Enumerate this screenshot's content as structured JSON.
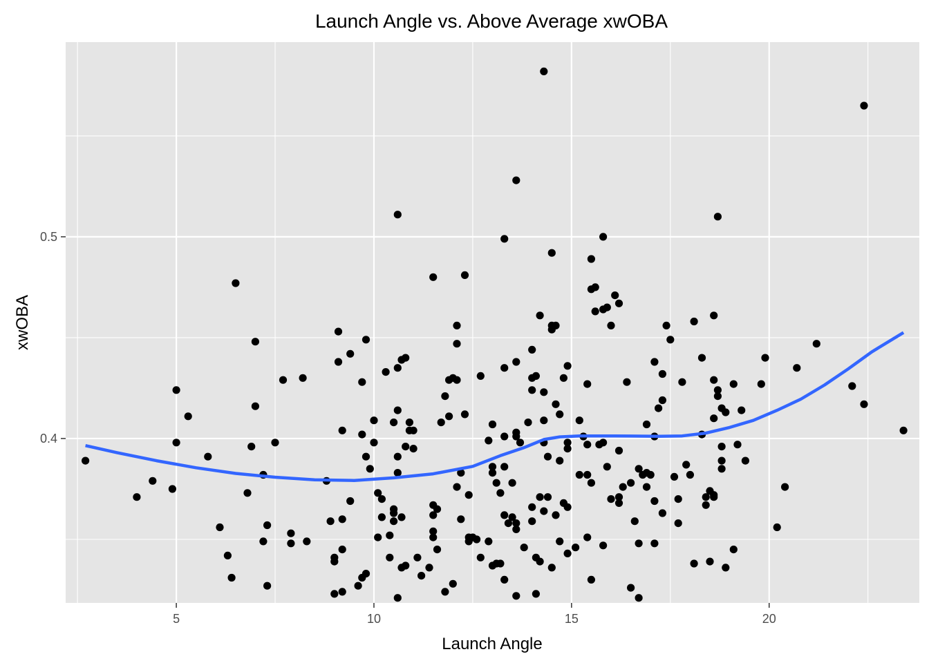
{
  "chart_data": {
    "type": "scatter",
    "title": "Launch Angle vs. Above Average xwOBA",
    "xlabel": "Launch Angle",
    "ylabel": "xwOBA",
    "xlim": [
      2.2,
      23.8
    ],
    "ylim": [
      0.3185,
      0.5965
    ],
    "x_ticks": [
      5,
      10,
      15,
      20
    ],
    "x_tick_labels": [
      "5",
      "10",
      "15",
      "20"
    ],
    "x_minor_ticks": [
      2.5,
      7.5,
      12.5,
      17.5,
      22.5
    ],
    "y_ticks": [
      0.4,
      0.5
    ],
    "y_tick_labels": [
      "0.4",
      "0.5"
    ],
    "y_minor_ticks": [
      0.35,
      0.45,
      0.55
    ],
    "grid": true,
    "colors": {
      "panel_background": "#e5e5e5",
      "grid": "#ffffff",
      "points": "#000000",
      "smooth_line": "#3366ff"
    },
    "points": [
      [
        2.7,
        0.389
      ],
      [
        4.0,
        0.371
      ],
      [
        4.4,
        0.379
      ],
      [
        4.9,
        0.375
      ],
      [
        5.0,
        0.424
      ],
      [
        5.0,
        0.398
      ],
      [
        5.3,
        0.411
      ],
      [
        5.8,
        0.391
      ],
      [
        6.1,
        0.356
      ],
      [
        6.3,
        0.342
      ],
      [
        6.4,
        0.331
      ],
      [
        6.5,
        0.477
      ],
      [
        6.8,
        0.373
      ],
      [
        6.9,
        0.396
      ],
      [
        7.0,
        0.448
      ],
      [
        7.0,
        0.416
      ],
      [
        7.2,
        0.382
      ],
      [
        7.2,
        0.349
      ],
      [
        7.3,
        0.357
      ],
      [
        7.3,
        0.327
      ],
      [
        7.5,
        0.398
      ],
      [
        7.7,
        0.429
      ],
      [
        7.9,
        0.353
      ],
      [
        7.9,
        0.348
      ],
      [
        8.2,
        0.43
      ],
      [
        8.3,
        0.349
      ],
      [
        8.8,
        0.379
      ],
      [
        8.9,
        0.359
      ],
      [
        9.0,
        0.341
      ],
      [
        9.0,
        0.339
      ],
      [
        9.0,
        0.323
      ],
      [
        9.1,
        0.453
      ],
      [
        9.1,
        0.438
      ],
      [
        9.2,
        0.404
      ],
      [
        9.2,
        0.36
      ],
      [
        9.2,
        0.345
      ],
      [
        9.2,
        0.324
      ],
      [
        9.4,
        0.442
      ],
      [
        9.4,
        0.369
      ],
      [
        9.6,
        0.327
      ],
      [
        9.7,
        0.428
      ],
      [
        9.7,
        0.402
      ],
      [
        9.7,
        0.331
      ],
      [
        9.8,
        0.449
      ],
      [
        9.8,
        0.391
      ],
      [
        9.8,
        0.333
      ],
      [
        9.9,
        0.385
      ],
      [
        10.0,
        0.409
      ],
      [
        10.0,
        0.398
      ],
      [
        10.1,
        0.373
      ],
      [
        10.1,
        0.351
      ],
      [
        10.2,
        0.37
      ],
      [
        10.2,
        0.361
      ],
      [
        10.3,
        0.433
      ],
      [
        10.4,
        0.352
      ],
      [
        10.4,
        0.341
      ],
      [
        10.5,
        0.408
      ],
      [
        10.5,
        0.365
      ],
      [
        10.5,
        0.363
      ],
      [
        10.5,
        0.359
      ],
      [
        10.6,
        0.511
      ],
      [
        10.6,
        0.435
      ],
      [
        10.6,
        0.414
      ],
      [
        10.6,
        0.391
      ],
      [
        10.6,
        0.383
      ],
      [
        10.6,
        0.321
      ],
      [
        10.7,
        0.439
      ],
      [
        10.7,
        0.361
      ],
      [
        10.7,
        0.336
      ],
      [
        10.8,
        0.44
      ],
      [
        10.8,
        0.396
      ],
      [
        10.8,
        0.337
      ],
      [
        10.9,
        0.408
      ],
      [
        10.9,
        0.404
      ],
      [
        11.0,
        0.404
      ],
      [
        11.0,
        0.395
      ],
      [
        11.1,
        0.341
      ],
      [
        11.2,
        0.332
      ],
      [
        11.4,
        0.336
      ],
      [
        11.5,
        0.351
      ],
      [
        11.5,
        0.48
      ],
      [
        11.5,
        0.354
      ],
      [
        11.5,
        0.367
      ],
      [
        11.5,
        0.362
      ],
      [
        11.6,
        0.365
      ],
      [
        11.6,
        0.345
      ],
      [
        11.7,
        0.408
      ],
      [
        11.8,
        0.421
      ],
      [
        11.8,
        0.324
      ],
      [
        11.9,
        0.429
      ],
      [
        11.9,
        0.411
      ],
      [
        12.0,
        0.43
      ],
      [
        12.0,
        0.328
      ],
      [
        12.1,
        0.456
      ],
      [
        12.1,
        0.447
      ],
      [
        12.1,
        0.429
      ],
      [
        12.1,
        0.376
      ],
      [
        12.2,
        0.383
      ],
      [
        12.2,
        0.36
      ],
      [
        12.3,
        0.481
      ],
      [
        12.3,
        0.412
      ],
      [
        12.4,
        0.372
      ],
      [
        12.4,
        0.351
      ],
      [
        12.4,
        0.349
      ],
      [
        12.5,
        0.351
      ],
      [
        12.6,
        0.35
      ],
      [
        12.7,
        0.431
      ],
      [
        12.7,
        0.341
      ],
      [
        12.9,
        0.349
      ],
      [
        12.9,
        0.399
      ],
      [
        13.0,
        0.383
      ],
      [
        13.0,
        0.407
      ],
      [
        13.0,
        0.386
      ],
      [
        13.0,
        0.337
      ],
      [
        13.1,
        0.378
      ],
      [
        13.1,
        0.338
      ],
      [
        13.2,
        0.373
      ],
      [
        13.2,
        0.338
      ],
      [
        13.3,
        0.499
      ],
      [
        13.3,
        0.435
      ],
      [
        13.3,
        0.401
      ],
      [
        13.3,
        0.386
      ],
      [
        13.3,
        0.362
      ],
      [
        13.3,
        0.33
      ],
      [
        13.4,
        0.358
      ],
      [
        13.5,
        0.378
      ],
      [
        13.5,
        0.361
      ],
      [
        13.6,
        0.528
      ],
      [
        13.6,
        0.438
      ],
      [
        13.6,
        0.403
      ],
      [
        13.6,
        0.401
      ],
      [
        13.6,
        0.358
      ],
      [
        13.6,
        0.355
      ],
      [
        13.6,
        0.322
      ],
      [
        13.7,
        0.398
      ],
      [
        13.8,
        0.346
      ],
      [
        13.9,
        0.408
      ],
      [
        14.0,
        0.444
      ],
      [
        14.0,
        0.43
      ],
      [
        14.0,
        0.424
      ],
      [
        14.0,
        0.366
      ],
      [
        14.0,
        0.359
      ],
      [
        14.1,
        0.431
      ],
      [
        14.1,
        0.341
      ],
      [
        14.1,
        0.323
      ],
      [
        14.2,
        0.461
      ],
      [
        14.2,
        0.371
      ],
      [
        14.2,
        0.339
      ],
      [
        14.3,
        0.423
      ],
      [
        14.3,
        0.409
      ],
      [
        14.3,
        0.398
      ],
      [
        14.3,
        0.364
      ],
      [
        14.3,
        0.582
      ],
      [
        14.4,
        0.391
      ],
      [
        14.4,
        0.371
      ],
      [
        14.5,
        0.492
      ],
      [
        14.5,
        0.456
      ],
      [
        14.5,
        0.454
      ],
      [
        14.5,
        0.336
      ],
      [
        14.6,
        0.456
      ],
      [
        14.6,
        0.417
      ],
      [
        14.6,
        0.362
      ],
      [
        14.7,
        0.412
      ],
      [
        14.7,
        0.389
      ],
      [
        14.7,
        0.349
      ],
      [
        14.8,
        0.43
      ],
      [
        14.8,
        0.368
      ],
      [
        14.9,
        0.436
      ],
      [
        14.9,
        0.398
      ],
      [
        14.9,
        0.395
      ],
      [
        14.9,
        0.366
      ],
      [
        14.9,
        0.343
      ],
      [
        15.1,
        0.346
      ],
      [
        15.2,
        0.382
      ],
      [
        15.2,
        0.409
      ],
      [
        15.3,
        0.401
      ],
      [
        15.4,
        0.427
      ],
      [
        15.4,
        0.397
      ],
      [
        15.4,
        0.382
      ],
      [
        15.4,
        0.351
      ],
      [
        15.5,
        0.489
      ],
      [
        15.5,
        0.474
      ],
      [
        15.5,
        0.378
      ],
      [
        15.5,
        0.33
      ],
      [
        15.6,
        0.475
      ],
      [
        15.6,
        0.463
      ],
      [
        15.7,
        0.397
      ],
      [
        15.8,
        0.5
      ],
      [
        15.8,
        0.464
      ],
      [
        15.8,
        0.398
      ],
      [
        15.8,
        0.347
      ],
      [
        15.9,
        0.465
      ],
      [
        15.9,
        0.386
      ],
      [
        16.0,
        0.456
      ],
      [
        16.0,
        0.37
      ],
      [
        16.1,
        0.471
      ],
      [
        16.2,
        0.467
      ],
      [
        16.2,
        0.394
      ],
      [
        16.2,
        0.371
      ],
      [
        16.2,
        0.368
      ],
      [
        16.3,
        0.376
      ],
      [
        16.4,
        0.428
      ],
      [
        16.5,
        0.378
      ],
      [
        16.5,
        0.326
      ],
      [
        16.6,
        0.359
      ],
      [
        16.7,
        0.385
      ],
      [
        16.7,
        0.348
      ],
      [
        16.7,
        0.321
      ],
      [
        16.8,
        0.382
      ],
      [
        16.9,
        0.407
      ],
      [
        16.9,
        0.383
      ],
      [
        16.9,
        0.376
      ],
      [
        17.0,
        0.382
      ],
      [
        17.1,
        0.438
      ],
      [
        17.1,
        0.401
      ],
      [
        17.1,
        0.369
      ],
      [
        17.1,
        0.348
      ],
      [
        17.2,
        0.415
      ],
      [
        17.3,
        0.432
      ],
      [
        17.3,
        0.419
      ],
      [
        17.3,
        0.363
      ],
      [
        17.4,
        0.456
      ],
      [
        17.5,
        0.449
      ],
      [
        17.6,
        0.381
      ],
      [
        17.7,
        0.37
      ],
      [
        17.7,
        0.358
      ],
      [
        17.8,
        0.428
      ],
      [
        17.9,
        0.387
      ],
      [
        18.0,
        0.382
      ],
      [
        18.1,
        0.458
      ],
      [
        18.1,
        0.338
      ],
      [
        18.3,
        0.44
      ],
      [
        18.3,
        0.402
      ],
      [
        18.4,
        0.371
      ],
      [
        18.4,
        0.367
      ],
      [
        18.5,
        0.374
      ],
      [
        18.5,
        0.339
      ],
      [
        18.6,
        0.461
      ],
      [
        18.6,
        0.429
      ],
      [
        18.6,
        0.41
      ],
      [
        18.6,
        0.371
      ],
      [
        18.6,
        0.372
      ],
      [
        18.7,
        0.51
      ],
      [
        18.7,
        0.424
      ],
      [
        18.7,
        0.421
      ],
      [
        18.8,
        0.415
      ],
      [
        18.8,
        0.396
      ],
      [
        18.8,
        0.389
      ],
      [
        18.8,
        0.385
      ],
      [
        18.9,
        0.413
      ],
      [
        18.9,
        0.336
      ],
      [
        19.1,
        0.427
      ],
      [
        19.1,
        0.345
      ],
      [
        19.2,
        0.397
      ],
      [
        19.3,
        0.414
      ],
      [
        19.4,
        0.389
      ],
      [
        19.8,
        0.427
      ],
      [
        19.9,
        0.44
      ],
      [
        20.2,
        0.356
      ],
      [
        20.4,
        0.376
      ],
      [
        20.7,
        0.435
      ],
      [
        21.2,
        0.447
      ],
      [
        22.1,
        0.426
      ],
      [
        22.4,
        0.565
      ],
      [
        22.4,
        0.417
      ],
      [
        23.4,
        0.404
      ]
    ],
    "smooth_line": [
      [
        2.7,
        0.3965
      ],
      [
        3.5,
        0.393
      ],
      [
        4.5,
        0.389
      ],
      [
        5.5,
        0.3855
      ],
      [
        6.5,
        0.3827
      ],
      [
        7.5,
        0.3808
      ],
      [
        8.5,
        0.3795
      ],
      [
        9.5,
        0.3792
      ],
      [
        10.5,
        0.3805
      ],
      [
        11.5,
        0.3825
      ],
      [
        12.5,
        0.3862
      ],
      [
        13.2,
        0.3915
      ],
      [
        13.8,
        0.3955
      ],
      [
        14.3,
        0.3995
      ],
      [
        14.7,
        0.4008
      ],
      [
        15.2,
        0.4013
      ],
      [
        15.8,
        0.4013
      ],
      [
        16.5,
        0.4012
      ],
      [
        17.2,
        0.4011
      ],
      [
        17.8,
        0.4013
      ],
      [
        18.4,
        0.4027
      ],
      [
        19.0,
        0.4055
      ],
      [
        19.6,
        0.409
      ],
      [
        20.2,
        0.414
      ],
      [
        20.8,
        0.4195
      ],
      [
        21.4,
        0.4265
      ],
      [
        22.0,
        0.4345
      ],
      [
        22.6,
        0.443
      ],
      [
        23.4,
        0.4525
      ]
    ]
  }
}
